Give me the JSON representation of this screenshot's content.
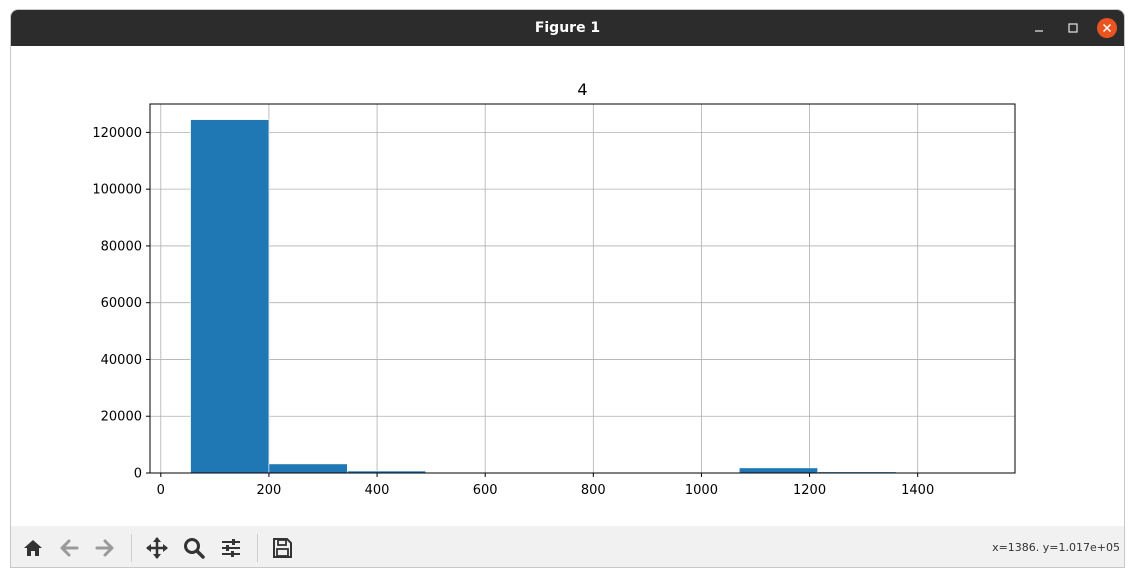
{
  "window": {
    "title": "Figure 1"
  },
  "toolbar": {
    "buttons": [
      {
        "name": "home-icon",
        "enabled": true
      },
      {
        "name": "back-arrow-icon",
        "enabled": false
      },
      {
        "name": "forward-arrow-icon",
        "enabled": false
      },
      {
        "name": "pan-icon",
        "enabled": true
      },
      {
        "name": "zoom-icon",
        "enabled": true
      },
      {
        "name": "configure-subplots-icon",
        "enabled": true
      },
      {
        "name": "save-icon",
        "enabled": true
      }
    ],
    "coords": "x=1386. y=1.017e+05"
  },
  "colors": {
    "bar": "#1f77b4",
    "grid": "#b0b0b0",
    "titlebar": "#2c2c2c",
    "close": "#e95420",
    "toolbar": "#f1f1f1"
  },
  "chart_data": {
    "type": "bar",
    "title": "4",
    "xlabel": "",
    "ylabel": "",
    "xlim": [
      -20,
      1580
    ],
    "ylim": [
      0,
      130000
    ],
    "xticks": [
      0,
      200,
      400,
      600,
      800,
      1000,
      1200,
      1400
    ],
    "yticks": [
      0,
      20000,
      40000,
      60000,
      80000,
      100000,
      120000
    ],
    "grid": true,
    "bins": [
      {
        "x0": 55,
        "x1": 200,
        "value": 124500
      },
      {
        "x0": 200,
        "x1": 345,
        "value": 3200
      },
      {
        "x0": 345,
        "x1": 490,
        "value": 700
      },
      {
        "x0": 490,
        "x1": 635,
        "value": 0
      },
      {
        "x0": 635,
        "x1": 780,
        "value": 0
      },
      {
        "x0": 780,
        "x1": 925,
        "value": 0
      },
      {
        "x0": 925,
        "x1": 1070,
        "value": 0
      },
      {
        "x0": 1070,
        "x1": 1215,
        "value": 1800
      },
      {
        "x0": 1215,
        "x1": 1360,
        "value": 400
      },
      {
        "x0": 1360,
        "x1": 1505,
        "value": 0
      }
    ]
  }
}
